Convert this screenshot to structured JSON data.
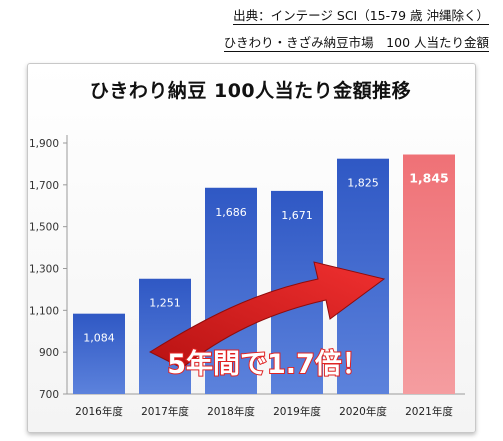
{
  "source": {
    "line1": "出典：インテージ SCI（15-79 歳 沖縄除く）",
    "line2": "ひきわり・きざみ納豆市場　100 人当たり金額"
  },
  "colors": {
    "bar": "#3a62c7",
    "bar_highlight": "#f07b7f",
    "arrow": "#e02222",
    "callout_text": "#ffffff",
    "callout_stroke": "#e02222"
  },
  "chart_data": {
    "type": "bar",
    "title": "ひきわり納豆 100人当たり金額推移",
    "xlabel": "",
    "ylabel": "",
    "categories": [
      "2016年度",
      "2017年度",
      "2018年度",
      "2019年度",
      "2020年度",
      "2021年度"
    ],
    "values": [
      1084,
      1251,
      1686,
      1671,
      1825,
      1845
    ],
    "value_labels": [
      "1,084",
      "1,251",
      "1,686",
      "1,671",
      "1,825",
      "1,845"
    ],
    "highlight_index": 5,
    "ylim": [
      700,
      1900
    ],
    "yticks": [
      700,
      900,
      1100,
      1300,
      1500,
      1700,
      1900
    ],
    "ytick_labels": [
      "700",
      "900",
      "1,100",
      "1,300",
      "1,500",
      "1,700",
      "1,900"
    ],
    "grid": false,
    "annotation": "5年間で1.7倍！"
  }
}
